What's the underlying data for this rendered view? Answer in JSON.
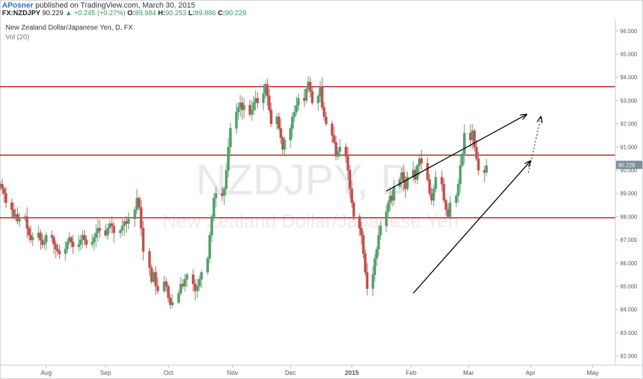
{
  "header": {
    "author": "APosner",
    "published_text": " published on TradingView.com, March 30, 2015",
    "symbol": "FX:NZDJPY",
    "last": "90.229",
    "change": "+0.245 (+0.27%)",
    "open_label": "O:",
    "open": "89.984",
    "high_label": "H:",
    "high": "90.253",
    "low_label": "L:",
    "low": "89.886",
    "close_label": "C:",
    "close": "90.229",
    "up_arrow": "▲"
  },
  "legend": {
    "title": "New Zealand Dollar/Japanese Yen, D, FX",
    "indicator": "Vol (20)"
  },
  "watermark": {
    "ticker": "NZDJPY, D",
    "name": "New Zealand Dollar/Japanese Yen"
  },
  "colors": {
    "bull": "#53a06c",
    "bear": "#c0504d",
    "resistance": "#b71c1c",
    "trendline": "#000000",
    "axis_text": "#555555",
    "price_tag": "#7f8c99"
  },
  "chart_data": {
    "type": "candlestick",
    "ylim": [
      81.6,
      96.5
    ],
    "y_ticks": [
      "82.000",
      "83.000",
      "84.000",
      "85.000",
      "86.000",
      "87.000",
      "88.000",
      "89.000",
      "90.000",
      "91.000",
      "92.000",
      "93.000",
      "94.000",
      "95.000",
      "96.000"
    ],
    "x_ticks": [
      "Aug",
      "Sep",
      "Oct",
      "Nov",
      "Dec",
      "2015",
      "Feb",
      "Mar",
      "Apr",
      "May"
    ],
    "last_price_label": "90.229",
    "horizontal_levels": [
      93.6,
      90.65,
      87.95
    ],
    "trendlines": [
      {
        "from": [
          "2015-01-19",
          89.1
        ],
        "to": [
          "2015-03-30",
          92.4
        ],
        "arrow": true,
        "style": "solid"
      },
      {
        "from": [
          "2015-02-02",
          84.7
        ],
        "to": [
          "2015-04-01",
          90.4
        ],
        "arrow": true,
        "style": "solid"
      },
      {
        "from": [
          "2015-03-31",
          89.9
        ],
        "to": [
          "2015-04-06",
          92.3
        ],
        "arrow": true,
        "style": "dotted"
      }
    ],
    "series_close": [
      89.3,
      89.4,
      89.2,
      89.0,
      88.6,
      88.3,
      88.0,
      88.1,
      87.8,
      87.9,
      88.0,
      87.5,
      87.2,
      87.0,
      87.1,
      87.3,
      87.0,
      86.8,
      86.9,
      87.2,
      87.1,
      86.8,
      86.6,
      86.5,
      86.4,
      86.6,
      86.9,
      87.1,
      86.9,
      86.7,
      86.8,
      87.0,
      87.2,
      87.0,
      86.8,
      86.9,
      87.1,
      87.3,
      87.5,
      87.4,
      87.2,
      87.5,
      87.7,
      87.6,
      87.3,
      87.4,
      87.6,
      87.8,
      87.7,
      87.9,
      88.3,
      88.8,
      88.4,
      87.5,
      86.5,
      85.8,
      85.2,
      85.6,
      85.0,
      84.8,
      85.2,
      85.0,
      84.5,
      84.2,
      84.3,
      84.7,
      85.1,
      85.0,
      85.3,
      85.5,
      85.1,
      84.8,
      85.0,
      85.3,
      85.6,
      86.2,
      87.2,
      88.0,
      88.8,
      89.0,
      88.9,
      89.2,
      90.0,
      91.0,
      91.8,
      92.5,
      92.7,
      92.9,
      92.6,
      92.8,
      92.4,
      92.6,
      92.9,
      93.1,
      92.9,
      93.3,
      93.7,
      93.2,
      92.6,
      92.0,
      92.3,
      91.8,
      91.4,
      90.9,
      91.3,
      91.8,
      92.3,
      92.5,
      92.8,
      93.1,
      93.0,
      93.5,
      93.8,
      93.4,
      92.9,
      93.2,
      93.6,
      92.7,
      92.3,
      92.0,
      91.5,
      91.2,
      90.6,
      90.8,
      91.0,
      90.6,
      90.0,
      89.2,
      88.6,
      88.0,
      87.5,
      87.2,
      86.4,
      85.6,
      84.9,
      85.5,
      86.2,
      86.6,
      87.2,
      87.6,
      88.2,
      88.6,
      88.9,
      88.7,
      89.3,
      89.6,
      89.9,
      89.5,
      89.2,
      89.7,
      90.0,
      89.6,
      90.2,
      90.5,
      90.3,
      89.6,
      89.0,
      88.7,
      89.2,
      89.7,
      89.4,
      88.7,
      88.3,
      88.0,
      88.6,
      88.9,
      89.4,
      90.2,
      90.7,
      91.6,
      91.3,
      91.7,
      91.0,
      90.5,
      90.0,
      89.9,
      90.2
    ],
    "x_start_date": "2014-07-07"
  }
}
